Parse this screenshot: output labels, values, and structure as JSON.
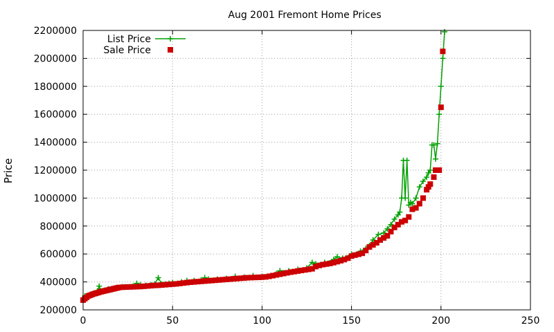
{
  "chart_data": {
    "type": "line",
    "title": "Aug 2001 Fremont Home Prices",
    "xlabel": "",
    "ylabel": "Price",
    "xlim": [
      0,
      250
    ],
    "ylim": [
      200000,
      2200000
    ],
    "xticks": [
      "0",
      "50",
      "100",
      "150",
      "200",
      "250"
    ],
    "yticks": [
      "200000",
      "400000",
      "600000",
      "800000",
      "1000000",
      "1200000",
      "1400000",
      "1600000",
      "1800000",
      "2000000",
      "2200000"
    ],
    "grid": true,
    "legend_position": "top-left",
    "series": [
      {
        "name": "List Price",
        "style": "line-plus",
        "color": "#00a000",
        "points": [
          [
            0,
            280000
          ],
          [
            1,
            300000
          ],
          [
            2,
            300000
          ],
          [
            4,
            310000
          ],
          [
            6,
            320000
          ],
          [
            8,
            335000
          ],
          [
            9,
            370000
          ],
          [
            10,
            335000
          ],
          [
            12,
            340000
          ],
          [
            14,
            350000
          ],
          [
            16,
            345000
          ],
          [
            18,
            355000
          ],
          [
            20,
            360000
          ],
          [
            22,
            365000
          ],
          [
            24,
            365000
          ],
          [
            26,
            365000
          ],
          [
            28,
            370000
          ],
          [
            30,
            390000
          ],
          [
            32,
            380000
          ],
          [
            35,
            375000
          ],
          [
            38,
            380000
          ],
          [
            40,
            385000
          ],
          [
            42,
            430000
          ],
          [
            44,
            385000
          ],
          [
            46,
            385000
          ],
          [
            48,
            390000
          ],
          [
            50,
            395000
          ],
          [
            55,
            400000
          ],
          [
            58,
            410000
          ],
          [
            62,
            410000
          ],
          [
            66,
            415000
          ],
          [
            68,
            430000
          ],
          [
            70,
            420000
          ],
          [
            75,
            420000
          ],
          [
            80,
            425000
          ],
          [
            85,
            440000
          ],
          [
            90,
            435000
          ],
          [
            95,
            445000
          ],
          [
            100,
            440000
          ],
          [
            105,
            445000
          ],
          [
            108,
            460000
          ],
          [
            110,
            480000
          ],
          [
            115,
            480000
          ],
          [
            120,
            490000
          ],
          [
            125,
            500000
          ],
          [
            128,
            540000
          ],
          [
            130,
            530000
          ],
          [
            135,
            540000
          ],
          [
            140,
            560000
          ],
          [
            142,
            580000
          ],
          [
            145,
            570000
          ],
          [
            150,
            600000
          ],
          [
            155,
            620000
          ],
          [
            158,
            640000
          ],
          [
            160,
            660000
          ],
          [
            162,
            700000
          ],
          [
            165,
            740000
          ],
          [
            168,
            750000
          ],
          [
            170,
            780000
          ],
          [
            172,
            810000
          ],
          [
            174,
            850000
          ],
          [
            176,
            880000
          ],
          [
            177,
            900000
          ],
          [
            178,
            1000000
          ],
          [
            179,
            1270000
          ],
          [
            180,
            1000000
          ],
          [
            181,
            1270000
          ],
          [
            182,
            950000
          ],
          [
            183,
            970000
          ],
          [
            184,
            960000
          ],
          [
            186,
            1000000
          ],
          [
            188,
            1080000
          ],
          [
            190,
            1120000
          ],
          [
            192,
            1150000
          ],
          [
            193,
            1180000
          ],
          [
            194,
            1200000
          ],
          [
            195,
            1380000
          ],
          [
            196,
            1380000
          ],
          [
            197,
            1280000
          ],
          [
            198,
            1390000
          ],
          [
            199,
            1600000
          ],
          [
            200,
            1800000
          ],
          [
            201,
            2000000
          ],
          [
            202,
            2190000
          ]
        ]
      },
      {
        "name": "Sale Price",
        "style": "square-markers",
        "color": "#cc0000",
        "points": [
          [
            0,
            270000
          ],
          [
            1,
            280000
          ],
          [
            2,
            290000
          ],
          [
            3,
            300000
          ],
          [
            4,
            305000
          ],
          [
            5,
            310000
          ],
          [
            6,
            315000
          ],
          [
            7,
            318000
          ],
          [
            8,
            322000
          ],
          [
            9,
            326000
          ],
          [
            10,
            330000
          ],
          [
            11,
            333000
          ],
          [
            12,
            336000
          ],
          [
            13,
            339000
          ],
          [
            14,
            342000
          ],
          [
            15,
            345000
          ],
          [
            16,
            348000
          ],
          [
            17,
            351000
          ],
          [
            18,
            354000
          ],
          [
            19,
            357000
          ],
          [
            20,
            360000
          ],
          [
            22,
            362000
          ],
          [
            24,
            363000
          ],
          [
            26,
            364000
          ],
          [
            28,
            365000
          ],
          [
            30,
            366000
          ],
          [
            32,
            367000
          ],
          [
            34,
            369000
          ],
          [
            36,
            371000
          ],
          [
            38,
            373000
          ],
          [
            40,
            375000
          ],
          [
            42,
            376000
          ],
          [
            44,
            378000
          ],
          [
            46,
            380000
          ],
          [
            48,
            382000
          ],
          [
            50,
            384000
          ],
          [
            52,
            386000
          ],
          [
            54,
            389000
          ],
          [
            56,
            392000
          ],
          [
            58,
            395000
          ],
          [
            60,
            398000
          ],
          [
            62,
            400000
          ],
          [
            64,
            402000
          ],
          [
            66,
            404000
          ],
          [
            68,
            406000
          ],
          [
            70,
            408000
          ],
          [
            72,
            410000
          ],
          [
            74,
            412000
          ],
          [
            76,
            414000
          ],
          [
            78,
            416000
          ],
          [
            80,
            418000
          ],
          [
            82,
            420000
          ],
          [
            84,
            422000
          ],
          [
            86,
            424000
          ],
          [
            88,
            426000
          ],
          [
            90,
            428000
          ],
          [
            92,
            430000
          ],
          [
            94,
            431000
          ],
          [
            96,
            432000
          ],
          [
            98,
            433000
          ],
          [
            100,
            434000
          ],
          [
            102,
            436000
          ],
          [
            104,
            440000
          ],
          [
            106,
            445000
          ],
          [
            108,
            450000
          ],
          [
            110,
            455000
          ],
          [
            112,
            460000
          ],
          [
            114,
            465000
          ],
          [
            116,
            470000
          ],
          [
            118,
            474000
          ],
          [
            120,
            478000
          ],
          [
            122,
            482000
          ],
          [
            124,
            486000
          ],
          [
            126,
            490000
          ],
          [
            128,
            494000
          ],
          [
            130,
            510000
          ],
          [
            132,
            518000
          ],
          [
            134,
            524000
          ],
          [
            136,
            528000
          ],
          [
            138,
            532000
          ],
          [
            140,
            538000
          ],
          [
            142,
            545000
          ],
          [
            144,
            552000
          ],
          [
            146,
            560000
          ],
          [
            148,
            570000
          ],
          [
            150,
            585000
          ],
          [
            152,
            592000
          ],
          [
            154,
            598000
          ],
          [
            156,
            605000
          ],
          [
            158,
            625000
          ],
          [
            160,
            650000
          ],
          [
            162,
            665000
          ],
          [
            164,
            680000
          ],
          [
            166,
            700000
          ],
          [
            168,
            715000
          ],
          [
            170,
            730000
          ],
          [
            172,
            760000
          ],
          [
            174,
            790000
          ],
          [
            176,
            810000
          ],
          [
            178,
            830000
          ],
          [
            180,
            840000
          ],
          [
            182,
            865000
          ],
          [
            184,
            920000
          ],
          [
            186,
            930000
          ],
          [
            188,
            960000
          ],
          [
            190,
            1000000
          ],
          [
            192,
            1060000
          ],
          [
            193,
            1080000
          ],
          [
            194,
            1100000
          ],
          [
            196,
            1150000
          ],
          [
            197,
            1200000
          ],
          [
            199,
            1200000
          ],
          [
            200,
            1650000
          ],
          [
            201,
            2050000
          ]
        ]
      }
    ]
  }
}
